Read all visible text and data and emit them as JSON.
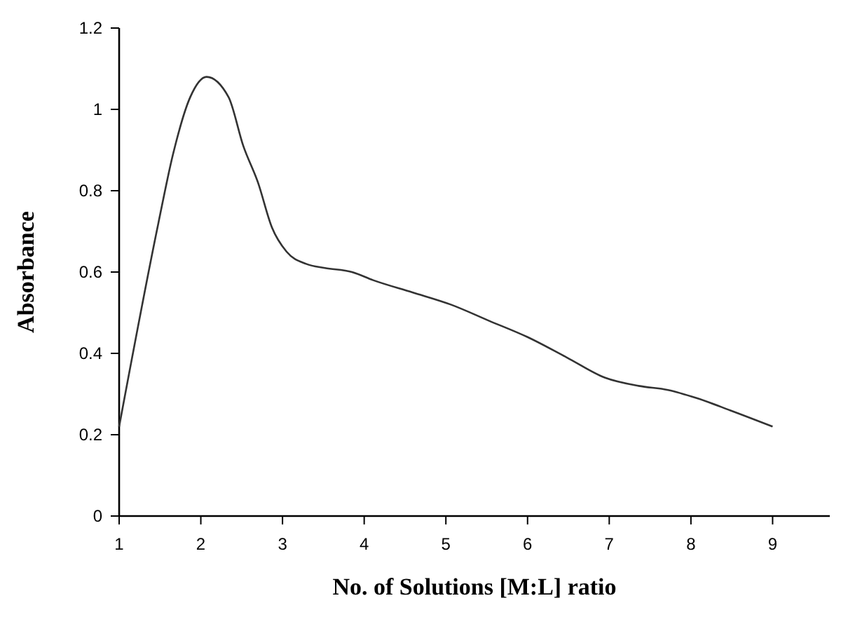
{
  "chart_data": {
    "type": "line",
    "xlabel": "No. of Solutions [M:L] ratio",
    "ylabel": "Absorbance",
    "xlim": [
      1,
      9.7
    ],
    "xticks": [
      1,
      2,
      3,
      4,
      5,
      6,
      7,
      8,
      9
    ],
    "ylim": [
      0,
      1.2
    ],
    "yticks": [
      0,
      0.2,
      0.4,
      0.6,
      0.8,
      1,
      1.2
    ],
    "grid": false,
    "marker": "none",
    "line_style": "solid",
    "series": [
      {
        "color": "#333333",
        "x": [
          1,
          1.48,
          1.66,
          1.87,
          2.07,
          2.34,
          2.52,
          2.7,
          2.87,
          3.05,
          3.29,
          3.52,
          3.85,
          4.11,
          4.59,
          5.06,
          5.53,
          6,
          6.48,
          6.95,
          7.36,
          7.72,
          8.07,
          8.48,
          9
        ],
        "values": [
          0.22,
          0.72,
          0.89,
          1.03,
          1.08,
          1.03,
          0.91,
          0.82,
          0.71,
          0.65,
          0.62,
          0.61,
          0.6,
          0.58,
          0.55,
          0.52,
          0.48,
          0.44,
          0.39,
          0.34,
          0.32,
          0.31,
          0.29,
          0.26,
          0.22
        ]
      }
    ]
  }
}
